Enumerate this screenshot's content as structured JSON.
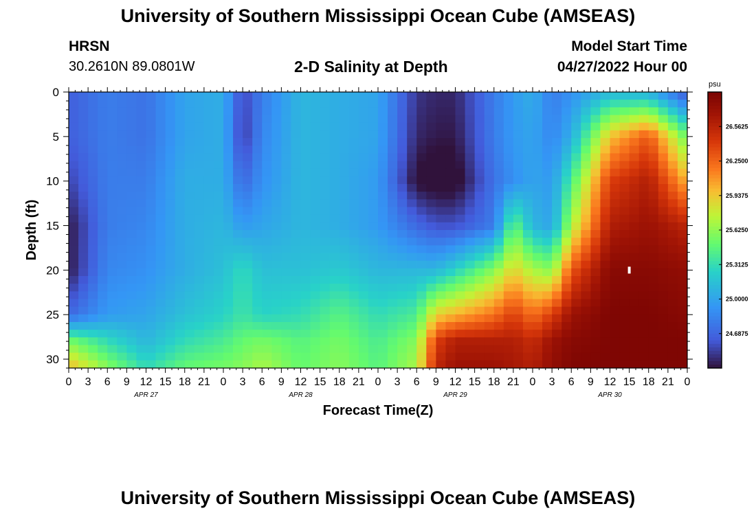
{
  "page": {
    "title": "University of Southern Mississippi Ocean Cube (AMSEAS)",
    "title_repeat": "University of Southern Mississippi Ocean Cube (AMSEAS)"
  },
  "station": {
    "name": "HRSN",
    "coords": "30.2610N  89.0801W"
  },
  "model": {
    "label": "Model Start Time",
    "datetime": "04/27/2022 Hour 00"
  },
  "chart_data": {
    "type": "heatmap",
    "title": "2-D Salinity at Depth",
    "xlabel": "Forecast Time(Z)",
    "ylabel": "Depth (ft)",
    "y_range": [
      0,
      31
    ],
    "y_ticks": [
      "0",
      "5",
      "10",
      "15",
      "20",
      "25",
      "30"
    ],
    "x_range_hours": [
      0,
      96
    ],
    "x_tick_labels": [
      "0",
      "3",
      "6",
      "9",
      "12",
      "15",
      "18",
      "21",
      "0",
      "3",
      "6",
      "9",
      "12",
      "15",
      "18",
      "21",
      "0",
      "3",
      "6",
      "9",
      "12",
      "15",
      "18",
      "21",
      "0",
      "3",
      "6",
      "9",
      "12",
      "15",
      "18",
      "21",
      "0"
    ],
    "day_labels": [
      {
        "label": "APR 27",
        "hour": 12
      },
      {
        "label": "APR 28",
        "hour": 36
      },
      {
        "label": "APR 29",
        "hour": 60
      },
      {
        "label": "APR 30",
        "hour": 84
      }
    ],
    "colorbar": {
      "unit": "psu",
      "min": 24.375,
      "max": 26.875,
      "ticks": [
        "26.5625",
        "26.2500",
        "25.9375",
        "25.6250",
        "25.3125",
        "25.0000",
        "24.6875"
      ]
    },
    "marker": {
      "hour": 87,
      "depth_ft": 20
    },
    "description_grid": {
      "depth_rows_ft": [
        0,
        5,
        10,
        15,
        20,
        25,
        28,
        31
      ],
      "hour_cols": [
        0,
        6,
        12,
        18,
        24,
        27,
        30,
        36,
        42,
        48,
        54,
        57,
        60,
        66,
        69,
        72,
        75,
        78,
        84,
        90,
        96
      ],
      "note": "approximate salinity (psu) by depth row and hour column",
      "values": [
        [
          24.65,
          24.8,
          24.75,
          25.0,
          25.05,
          24.55,
          24.8,
          25.1,
          25.05,
          25.0,
          24.5,
          24.45,
          24.45,
          24.8,
          24.95,
          25.05,
          24.8,
          24.9,
          25.1,
          25.05,
          24.6
        ],
        [
          24.65,
          24.8,
          24.75,
          25.0,
          25.05,
          24.5,
          24.85,
          25.1,
          25.05,
          25.0,
          24.45,
          24.4,
          24.4,
          24.8,
          24.95,
          25.0,
          24.85,
          25.05,
          25.95,
          26.3,
          25.5
        ],
        [
          24.55,
          24.8,
          24.8,
          25.05,
          25.05,
          24.7,
          24.9,
          25.1,
          25.05,
          24.95,
          24.35,
          24.3,
          24.3,
          24.75,
          24.9,
          25.0,
          24.95,
          25.4,
          26.4,
          26.6,
          26.0
        ],
        [
          24.4,
          24.8,
          24.85,
          25.05,
          25.1,
          24.95,
          25.0,
          25.1,
          25.05,
          24.95,
          24.7,
          24.6,
          24.6,
          24.8,
          25.5,
          25.1,
          25.0,
          25.7,
          26.6,
          26.7,
          26.55
        ],
        [
          24.4,
          24.85,
          24.9,
          25.05,
          25.15,
          25.3,
          25.15,
          25.15,
          25.2,
          25.1,
          25.1,
          25.1,
          25.25,
          25.6,
          25.9,
          25.7,
          25.6,
          26.3,
          26.8,
          26.8,
          26.75
        ],
        [
          24.7,
          24.95,
          25.0,
          25.15,
          25.25,
          25.35,
          25.25,
          25.3,
          25.45,
          25.3,
          25.4,
          25.9,
          26.0,
          26.2,
          26.4,
          26.2,
          26.4,
          26.7,
          26.85,
          26.85,
          26.8
        ],
        [
          25.55,
          25.3,
          25.1,
          25.3,
          25.4,
          25.5,
          25.55,
          25.45,
          25.55,
          25.4,
          25.6,
          26.4,
          26.6,
          26.6,
          26.6,
          26.5,
          26.7,
          26.8,
          26.85,
          26.85,
          26.85
        ],
        [
          26.0,
          25.6,
          25.3,
          25.5,
          25.55,
          25.6,
          25.7,
          25.5,
          25.6,
          25.45,
          25.7,
          26.55,
          26.7,
          26.7,
          26.65,
          26.6,
          26.75,
          26.85,
          26.85,
          26.85,
          26.85
        ]
      ]
    }
  }
}
